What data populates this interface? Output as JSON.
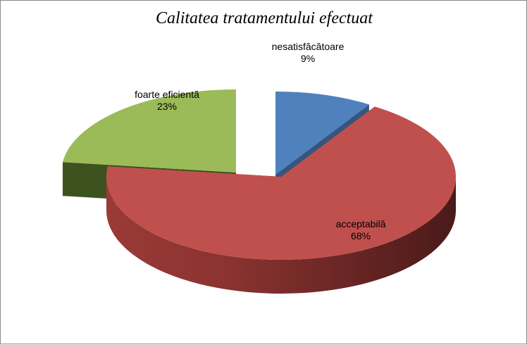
{
  "chart_data": {
    "type": "pie",
    "title": "Calitatea tratamentului efectuat",
    "slices": [
      {
        "label": "nesatisfăcătoare",
        "value": 9,
        "value_label": "9%",
        "color": "#4F81BD"
      },
      {
        "label": "acceptabilă",
        "value": 68,
        "value_label": "68%",
        "color": "#C0504D"
      },
      {
        "label": "foarte eficientă",
        "value": 23,
        "value_label": "23%",
        "color": "#9BBB59"
      }
    ],
    "style": "3d-exploded",
    "legend": "none"
  }
}
